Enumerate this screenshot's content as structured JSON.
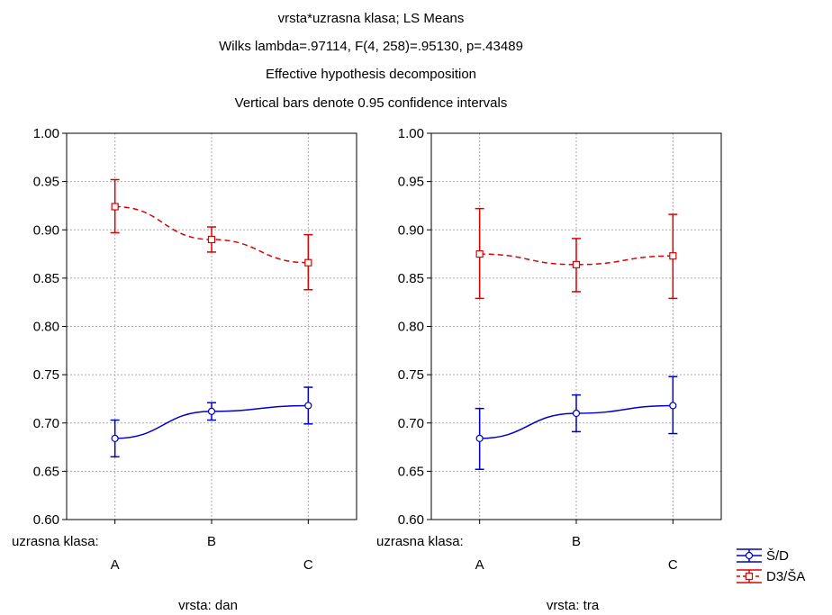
{
  "chart_data": {
    "type": "line",
    "title_lines": [
      "vrsta*uzrasna klasa; LS Means",
      "Wilks lambda=.97114, F(4, 258)=.95130, p=.43489",
      "Effective hypothesis decomposition",
      "Vertical bars denote 0.95 confidence intervals"
    ],
    "ylim": [
      0.6,
      1.0
    ],
    "yticks": [
      "0.60",
      "0.65",
      "0.70",
      "0.75",
      "0.80",
      "0.85",
      "0.90",
      "0.95",
      "1.00"
    ],
    "grid": true,
    "factor_label": "uzrasna klasa:",
    "categories": [
      "A",
      "B",
      "C"
    ],
    "legend": {
      "placement": "bottom-right"
    },
    "series_styles": [
      {
        "name": "Š/D",
        "color": "#0000cc",
        "dash": "solid",
        "marker": "circle"
      },
      {
        "name": "D3/ŠA",
        "color": "#dd0000",
        "dash": "dashed",
        "marker": "square"
      }
    ],
    "panels": [
      {
        "label": "vrsta: dan",
        "series": [
          {
            "name": "Š/D",
            "values": [
              0.684,
              0.712,
              0.718
            ],
            "lower": [
              0.665,
              0.703,
              0.699
            ],
            "upper": [
              0.703,
              0.721,
              0.737
            ]
          },
          {
            "name": "D3/ŠA",
            "values": [
              0.924,
              0.89,
              0.866
            ],
            "lower": [
              0.897,
              0.877,
              0.838
            ],
            "upper": [
              0.952,
              0.903,
              0.895
            ]
          }
        ]
      },
      {
        "label": "vrsta: tra",
        "series": [
          {
            "name": "Š/D",
            "values": [
              0.684,
              0.71,
              0.718
            ],
            "lower": [
              0.652,
              0.691,
              0.689
            ],
            "upper": [
              0.715,
              0.729,
              0.748
            ]
          },
          {
            "name": "D3/ŠA",
            "values": [
              0.875,
              0.864,
              0.873
            ],
            "lower": [
              0.829,
              0.836,
              0.829
            ],
            "upper": [
              0.922,
              0.891,
              0.916
            ]
          }
        ]
      }
    ]
  }
}
